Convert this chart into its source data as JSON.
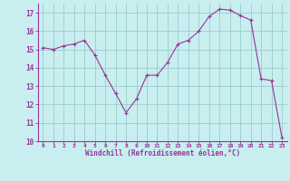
{
  "x": [
    0,
    1,
    2,
    3,
    4,
    5,
    6,
    7,
    8,
    9,
    10,
    11,
    12,
    13,
    14,
    15,
    16,
    17,
    18,
    19,
    20,
    21,
    22,
    23
  ],
  "y": [
    15.1,
    15.0,
    15.2,
    15.3,
    15.5,
    14.7,
    13.6,
    12.6,
    11.55,
    12.3,
    13.6,
    13.6,
    14.3,
    15.3,
    15.5,
    16.0,
    16.8,
    17.2,
    17.15,
    16.85,
    16.6,
    13.4,
    13.3,
    10.2
  ],
  "line_color": "#993399",
  "marker": "+",
  "bg_color": "#c8eef0",
  "grid_color": "#99cccc",
  "axis_color": "#993399",
  "label_color": "#993399",
  "xlabel": "Windchill (Refroidissement éolien,°C)",
  "xlim": [
    -0.5,
    23.5
  ],
  "ylim": [
    10,
    17.5
  ],
  "yticks": [
    10,
    11,
    12,
    13,
    14,
    15,
    16,
    17
  ],
  "xticks": [
    0,
    1,
    2,
    3,
    4,
    5,
    6,
    7,
    8,
    9,
    10,
    11,
    12,
    13,
    14,
    15,
    16,
    17,
    18,
    19,
    20,
    21,
    22,
    23
  ]
}
